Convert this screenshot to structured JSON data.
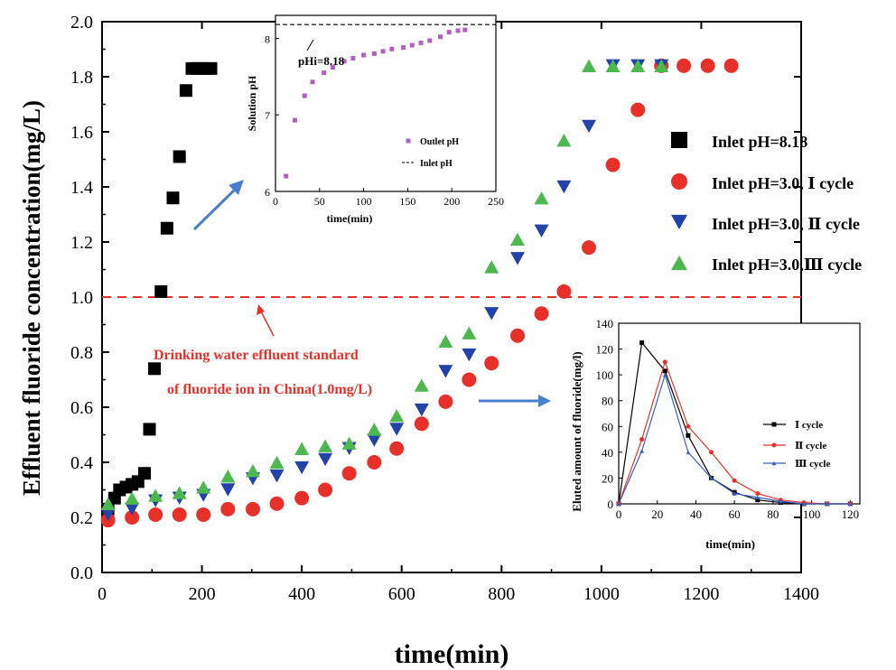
{
  "chart_data": [
    {
      "id": "main",
      "type": "scatter",
      "title": "",
      "xlabel": "time(min)",
      "ylabel": "Effluent fluoride concentration(mg/L)",
      "xlim": [
        0,
        1400
      ],
      "ylim": [
        0,
        2.0
      ],
      "xticks": [
        "0",
        "200",
        "400",
        "600",
        "800",
        "1000",
        "1200",
        "1400"
      ],
      "yticks": [
        "0.0",
        "0.2",
        "0.4",
        "0.6",
        "0.8",
        "1.0",
        "1.2",
        "1.4",
        "1.6",
        "1.8",
        "2.0"
      ],
      "legend": {
        "placement": "right"
      },
      "reference_line": {
        "y": 1.0,
        "color": "#e8302a",
        "style": "dashed"
      },
      "annotations": [
        {
          "lines": [
            "Drinking water effluent standard",
            "of fluoride ion in China(1.0mg/L)"
          ],
          "color": "#e8302a"
        }
      ],
      "series": [
        {
          "name": "Inlet pH=8.18",
          "marker": "square",
          "color": "#000000",
          "points": [
            [
              12,
              0.23
            ],
            [
              25,
              0.27
            ],
            [
              35,
              0.3
            ],
            [
              48,
              0.31
            ],
            [
              60,
              0.32
            ],
            [
              72,
              0.33
            ],
            [
              85,
              0.36
            ],
            [
              95,
              0.52
            ],
            [
              105,
              0.74
            ],
            [
              118,
              1.02
            ],
            [
              130,
              1.25
            ],
            [
              142,
              1.36
            ],
            [
              155,
              1.51
            ],
            [
              168,
              1.75
            ],
            [
              180,
              1.83
            ],
            [
              193,
              1.83
            ],
            [
              205,
              1.83
            ],
            [
              218,
              1.83
            ]
          ]
        },
        {
          "name": "Inlet pH=3.0, Ⅰ cycle",
          "marker": "circle",
          "color": "#e8302a",
          "points": [
            [
              12,
              0.19
            ],
            [
              60,
              0.2
            ],
            [
              107,
              0.21
            ],
            [
              155,
              0.21
            ],
            [
              203,
              0.21
            ],
            [
              252,
              0.23
            ],
            [
              302,
              0.23
            ],
            [
              350,
              0.25
            ],
            [
              400,
              0.27
            ],
            [
              447,
              0.3
            ],
            [
              495,
              0.36
            ],
            [
              545,
              0.4
            ],
            [
              590,
              0.45
            ],
            [
              640,
              0.54
            ],
            [
              688,
              0.62
            ],
            [
              735,
              0.7
            ],
            [
              780,
              0.76
            ],
            [
              832,
              0.86
            ],
            [
              880,
              0.94
            ],
            [
              925,
              1.02
            ],
            [
              975,
              1.18
            ],
            [
              1023,
              1.48
            ],
            [
              1073,
              1.68
            ],
            [
              1120,
              1.84
            ],
            [
              1165,
              1.84
            ],
            [
              1213,
              1.84
            ],
            [
              1260,
              1.84
            ]
          ]
        },
        {
          "name": "Inlet pH=3.0, Ⅱ cycle",
          "marker": "triangle-down",
          "color": "#2244aa",
          "points": [
            [
              12,
              0.21
            ],
            [
              60,
              0.23
            ],
            [
              107,
              0.26
            ],
            [
              155,
              0.27
            ],
            [
              203,
              0.28
            ],
            [
              252,
              0.3
            ],
            [
              302,
              0.34
            ],
            [
              350,
              0.35
            ],
            [
              400,
              0.38
            ],
            [
              447,
              0.41
            ],
            [
              495,
              0.45
            ],
            [
              545,
              0.48
            ],
            [
              590,
              0.52
            ],
            [
              640,
              0.59
            ],
            [
              688,
              0.73
            ],
            [
              735,
              0.79
            ],
            [
              780,
              0.94
            ],
            [
              832,
              1.14
            ],
            [
              880,
              1.24
            ],
            [
              925,
              1.4
            ],
            [
              975,
              1.62
            ],
            [
              1023,
              1.84
            ],
            [
              1073,
              1.84
            ],
            [
              1120,
              1.84
            ]
          ]
        },
        {
          "name": "Inlet pH=3.0,Ⅲ cycle",
          "marker": "triangle-up",
          "color": "#4db84d",
          "points": [
            [
              12,
              0.25
            ],
            [
              60,
              0.27
            ],
            [
              107,
              0.28
            ],
            [
              155,
              0.29
            ],
            [
              203,
              0.31
            ],
            [
              252,
              0.35
            ],
            [
              302,
              0.37
            ],
            [
              350,
              0.4
            ],
            [
              400,
              0.45
            ],
            [
              447,
              0.46
            ],
            [
              495,
              0.47
            ],
            [
              545,
              0.52
            ],
            [
              590,
              0.57
            ],
            [
              640,
              0.68
            ],
            [
              688,
              0.84
            ],
            [
              735,
              0.87
            ],
            [
              780,
              1.11
            ],
            [
              832,
              1.21
            ],
            [
              880,
              1.36
            ],
            [
              925,
              1.57
            ],
            [
              975,
              1.84
            ],
            [
              1023,
              1.84
            ],
            [
              1073,
              1.84
            ],
            [
              1120,
              1.84
            ]
          ]
        }
      ]
    },
    {
      "id": "inset-ph",
      "type": "scatter",
      "xlabel": "time(min)",
      "ylabel": "Solution pH",
      "xlim": [
        0,
        250
      ],
      "ylim": [
        6,
        8.3
      ],
      "xticks": [
        "0",
        "50",
        "100",
        "150",
        "200",
        "250"
      ],
      "yticks": [
        "6",
        "7",
        "8"
      ],
      "annotation": "pHi=8.18",
      "legend": {
        "placement": "bottom-right"
      },
      "series": [
        {
          "name": "Outlet pH",
          "marker": "square",
          "color": "#b060c0",
          "points": [
            [
              12,
              6.2
            ],
            [
              22,
              6.93
            ],
            [
              33,
              7.25
            ],
            [
              42,
              7.43
            ],
            [
              55,
              7.55
            ],
            [
              65,
              7.62
            ],
            [
              78,
              7.7
            ],
            [
              88,
              7.74
            ],
            [
              100,
              7.78
            ],
            [
              112,
              7.8
            ],
            [
              122,
              7.83
            ],
            [
              132,
              7.86
            ],
            [
              145,
              7.88
            ],
            [
              155,
              7.91
            ],
            [
              165,
              7.94
            ],
            [
              175,
              7.97
            ],
            [
              187,
              8.02
            ],
            [
              197,
              8.08
            ],
            [
              207,
              8.1
            ],
            [
              215,
              8.11
            ]
          ]
        },
        {
          "name": "Inlet pH",
          "type": "line",
          "style": "dashed",
          "color": "#000000",
          "y": 8.18
        }
      ]
    },
    {
      "id": "inset-elution",
      "type": "line",
      "xlabel": "time(min)",
      "ylabel": "Eluted amount of fluoride(mg/l)",
      "xlim": [
        0,
        125
      ],
      "ylim": [
        0,
        140
      ],
      "xticks": [
        "0",
        "20",
        "40",
        "60",
        "80",
        "100",
        "120"
      ],
      "yticks": [
        "0",
        "20",
        "40",
        "60",
        "80",
        "100",
        "120",
        "140"
      ],
      "legend": {
        "placement": "right"
      },
      "series": [
        {
          "name": "Ⅰ cycle",
          "marker": "square",
          "color": "#000000",
          "points": [
            [
              0,
              0
            ],
            [
              12,
              125
            ],
            [
              24,
              103
            ],
            [
              36,
              53
            ],
            [
              48,
              20
            ],
            [
              60,
              9
            ],
            [
              72,
              3
            ],
            [
              84,
              1
            ],
            [
              96,
              0
            ],
            [
              108,
              0
            ],
            [
              120,
              0
            ]
          ]
        },
        {
          "name": "Ⅱ cycle",
          "marker": "circle",
          "color": "#e8302a",
          "points": [
            [
              0,
              0
            ],
            [
              12,
              50
            ],
            [
              24,
              110
            ],
            [
              36,
              60
            ],
            [
              48,
              40
            ],
            [
              60,
              18
            ],
            [
              72,
              8
            ],
            [
              84,
              3
            ],
            [
              96,
              1
            ],
            [
              108,
              0
            ],
            [
              120,
              0
            ]
          ]
        },
        {
          "name": "Ⅲ cycle",
          "marker": "triangle-up",
          "color": "#3a5fc0",
          "points": [
            [
              0,
              0
            ],
            [
              12,
              41
            ],
            [
              24,
              100
            ],
            [
              36,
              40
            ],
            [
              48,
              20
            ],
            [
              60,
              8
            ],
            [
              72,
              5
            ],
            [
              84,
              2
            ],
            [
              96,
              0
            ],
            [
              108,
              0
            ],
            [
              120,
              0
            ]
          ]
        }
      ]
    }
  ],
  "arrow_color": "#4a7fd0"
}
